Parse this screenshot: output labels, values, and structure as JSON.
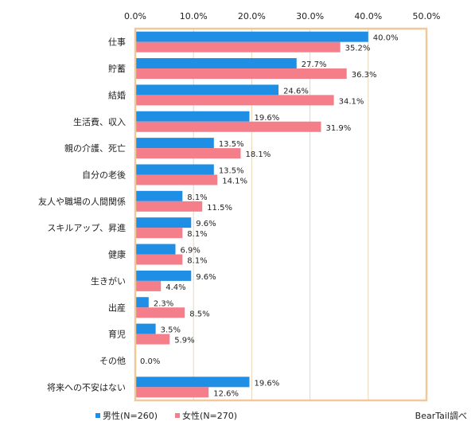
{
  "chart_data": {
    "type": "bar",
    "orientation": "horizontal",
    "categories": [
      "仕事",
      "貯蓄",
      "結婚",
      "生活費、収入",
      "親の介護、死亡",
      "自分の老後",
      "友人や職場の人間関係",
      "スキルアップ、昇進",
      "健康",
      "生きがい",
      "出産",
      "育児",
      "その他",
      "将来への不安はない"
    ],
    "series": [
      {
        "name": "男性(N=260)",
        "color": "#1f8fe5",
        "values": [
          40.0,
          27.7,
          24.6,
          19.6,
          13.5,
          13.5,
          8.1,
          9.6,
          6.9,
          9.6,
          2.3,
          3.5,
          null,
          19.6
        ]
      },
      {
        "name": "女性(N=270)",
        "color": "#f47f8a",
        "values": [
          35.2,
          36.3,
          34.1,
          31.9,
          18.1,
          14.1,
          11.5,
          8.1,
          8.1,
          4.4,
          8.5,
          5.9,
          0.0,
          12.6
        ]
      }
    ],
    "value_labels": [
      [
        "40.0%",
        "35.2%"
      ],
      [
        "27.7%",
        "36.3%"
      ],
      [
        "24.6%",
        "34.1%"
      ],
      [
        "19.6%",
        "31.9%"
      ],
      [
        "13.5%",
        "18.1%"
      ],
      [
        "13.5%",
        "14.1%"
      ],
      [
        "8.1%",
        "11.5%"
      ],
      [
        "9.6%",
        "8.1%"
      ],
      [
        "6.9%",
        "8.1%"
      ],
      [
        "9.6%",
        "4.4%"
      ],
      [
        "2.3%",
        "8.5%"
      ],
      [
        "3.5%",
        "5.9%"
      ],
      [
        "0.0%"
      ],
      [
        "19.6%",
        "12.6%"
      ]
    ],
    "xlim": [
      0,
      50
    ],
    "xticks": [
      "0.0%",
      "10.0%",
      "20.0%",
      "30.0%",
      "40.0%",
      "50.0%"
    ],
    "xaxis_position": "top",
    "grid": true,
    "legend_position": "bottom-left",
    "frame_color": "#f0c89a"
  },
  "source_text": "BearTail調べ"
}
